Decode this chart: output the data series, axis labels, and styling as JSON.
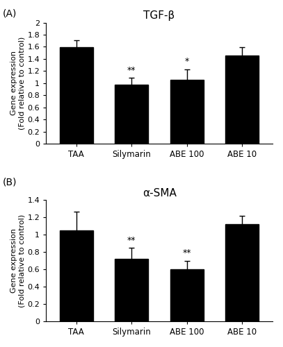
{
  "panel_A": {
    "title": "TGF-β",
    "categories": [
      "TAA",
      "Silymarin",
      "ABE 100",
      "ABE 10"
    ],
    "values": [
      1.59,
      0.97,
      1.05,
      1.46
    ],
    "errors": [
      0.12,
      0.12,
      0.18,
      0.13
    ],
    "significance": [
      "",
      "**",
      "*",
      ""
    ],
    "ylim": [
      0,
      2.0
    ],
    "yticks": [
      0,
      0.2,
      0.4,
      0.6,
      0.8,
      1.0,
      1.2,
      1.4,
      1.6,
      1.8,
      2.0
    ],
    "yticklabels": [
      "0",
      "0.2",
      "0.4",
      "0.6",
      "0.8",
      "1",
      "1.2",
      "1.4",
      "1.6",
      "1.8",
      "2"
    ],
    "ylabel": "Gene expression\n(Fold relative to control)"
  },
  "panel_B": {
    "title": "α-SMA",
    "categories": [
      "TAA",
      "Silymarin",
      "ABE 100",
      "ABE 10"
    ],
    "values": [
      1.05,
      0.72,
      0.6,
      1.12
    ],
    "errors": [
      0.22,
      0.13,
      0.1,
      0.1
    ],
    "significance": [
      "",
      "**",
      "**",
      ""
    ],
    "ylim": [
      0,
      1.4
    ],
    "yticks": [
      0,
      0.2,
      0.4,
      0.6,
      0.8,
      1.0,
      1.2,
      1.4
    ],
    "yticklabels": [
      "0",
      "0.2",
      "0.4",
      "0.6",
      "0.8",
      "1",
      "1.2",
      "1.4"
    ],
    "ylabel": "Gene expression\n(Fold relative to control)"
  },
  "bar_color": "#000000",
  "bar_width": 0.6,
  "label_A": "(A)",
  "label_B": "(B)",
  "capsize": 3,
  "sig_fontsize": 9,
  "tick_fontsize": 8,
  "ylabel_fontsize": 8,
  "title_fontsize": 11,
  "xlabel_fontsize": 8.5
}
